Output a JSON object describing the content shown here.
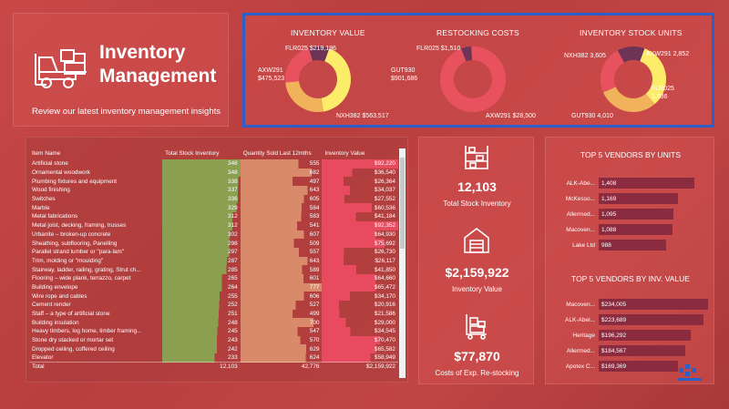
{
  "header": {
    "title_line1": "Inventory",
    "title_line2": "Management",
    "subtitle": "Review our latest inventory management insights"
  },
  "donuts": [
    {
      "title": "INVENTORY VALUE",
      "segments": [
        {
          "name": "GUT930",
          "value": 901686,
          "label": "GUT930 $901,686",
          "color": "#fcec6a"
        },
        {
          "name": "NXH382",
          "value": 563517,
          "label": "NXH382 $563,517",
          "color": "#f0b25a"
        },
        {
          "name": "AXW291",
          "value": 475523,
          "label": "AXW291 $475,523",
          "color": "#e8525f"
        },
        {
          "name": "FLR025",
          "value": 219196,
          "label": "FLR025 $219,196",
          "color": "#6d3456"
        }
      ]
    },
    {
      "title": "RESTOCKING COSTS",
      "segments": [
        {
          "name": "AXW291",
          "value": 28500,
          "label": "AXW291 $28,500",
          "color": "#e8525f"
        },
        {
          "name": "FLR025",
          "value": 1510,
          "label": "FLR025 $1,510",
          "color": "#6d3456"
        }
      ]
    },
    {
      "title": "INVENTORY STOCK UNITS",
      "segments": [
        {
          "name": "GUT930",
          "value": 4010,
          "label": "GUT930 4,010",
          "color": "#fcec6a"
        },
        {
          "name": "NXH382",
          "value": 3605,
          "label": "NXH382 3,605",
          "color": "#f0b25a"
        },
        {
          "name": "AXW291",
          "value": 2852,
          "label": "AXW291 2,852",
          "color": "#e8525f"
        },
        {
          "name": "FLR025",
          "value": 1636,
          "label": "FLR025 1,636",
          "color": "#6d3456"
        }
      ]
    }
  ],
  "table": {
    "columns": [
      "Item Name",
      "Total Stock Inventory",
      "Quantity Sold Last 12mths",
      "Inventory Value"
    ],
    "rows": [
      [
        "Artificial stone",
        "348",
        "555",
        "$92,220"
      ],
      [
        "Ornamental woodwork",
        "348",
        "682",
        "$36,540"
      ],
      [
        "Plumbing fixtures and equipment",
        "338",
        "497",
        "$26,364"
      ],
      [
        "Wood finishing",
        "337",
        "643",
        "$34,037"
      ],
      [
        "Switches",
        "336",
        "605",
        "$27,552"
      ],
      [
        "Marble",
        "329",
        "584",
        "$60,536"
      ],
      [
        "Metal fabrications",
        "312",
        "583",
        "$41,184"
      ],
      [
        "Metal joist, decking, framing, trusses",
        "312",
        "541",
        "$92,352"
      ],
      [
        "Urbanite – broken-up concrete",
        "302",
        "607",
        "$64,930"
      ],
      [
        "Sheathing, subflooring, Panelling",
        "298",
        "509",
        "$75,692"
      ],
      [
        "Parallel strand lumber or \"para-lam\"",
        "297",
        "557",
        "$26,730"
      ],
      [
        "Trim, molding or \"moulding\"",
        "287",
        "643",
        "$26,117"
      ],
      [
        "Stairway, ladder, railing, grating, Strut ch...",
        "285",
        "589",
        "$41,850"
      ],
      [
        "Flooring – wide plank, terrazzo, carpet",
        "265",
        "601",
        "$64,660"
      ],
      [
        "Building envelope",
        "264",
        "777",
        "$65,472"
      ],
      [
        "Wire rope and cables",
        "255",
        "606",
        "$34,170"
      ],
      [
        "Cement render",
        "252",
        "527",
        "$20,916"
      ],
      [
        "Staff – a type of artificial stone",
        "251",
        "499",
        "$21,586"
      ],
      [
        "Building insulation",
        "248",
        "700",
        "$29,000"
      ],
      [
        "Heavy timbers, log home, timber framing...",
        "245",
        "547",
        "$34,545"
      ],
      [
        "Stone dry stacked or mortar set",
        "243",
        "570",
        "$70,470"
      ],
      [
        "Dropped ceiling, coffered ceiling",
        "242",
        "629",
        "$65,582"
      ],
      [
        "Elevator",
        "233",
        "624",
        "$58,949"
      ]
    ],
    "total": [
      "Total",
      "12,103",
      "42,776",
      "$2,159,922"
    ],
    "colors": {
      "stock": "#8aa050",
      "sold": "#d98a6a",
      "value": "#e84a5f"
    }
  },
  "kpis": [
    {
      "value": "12,103",
      "label": "Total Stock Inventory",
      "icon": "shelving-icon"
    },
    {
      "value": "$2,159,922",
      "label": "Inventory Value",
      "icon": "warehouse-icon"
    },
    {
      "value": "$77,870",
      "label": "Costs of Exp. Re-stocking",
      "icon": "trolley-icon"
    }
  ],
  "vendors_units": {
    "title": "TOP 5 VENDORS BY UNITS",
    "items": [
      {
        "name": "ALK-Abe...",
        "value": 1408,
        "label": "1,408"
      },
      {
        "name": "McKesso...",
        "value": 1169,
        "label": "1,169"
      },
      {
        "name": "Allermed...",
        "value": 1095,
        "label": "1,095"
      },
      {
        "name": "Macoven...",
        "value": 1088,
        "label": "1,088"
      },
      {
        "name": "Lake Ltd",
        "value": 988,
        "label": "988"
      }
    ]
  },
  "vendors_value": {
    "title": "TOP 5 VENDORS BY INV. VALUE",
    "items": [
      {
        "name": "Macoven...",
        "value": 234005,
        "label": "$234,005"
      },
      {
        "name": "ALK-Abel...",
        "value": 223689,
        "label": "$223,689"
      },
      {
        "name": "Heritage",
        "value": 196292,
        "label": "$196,292"
      },
      {
        "name": "Allermed...",
        "value": 184567,
        "label": "$184,567"
      },
      {
        "name": "Apotex C...",
        "value": 169369,
        "label": "$169,369"
      }
    ]
  }
}
